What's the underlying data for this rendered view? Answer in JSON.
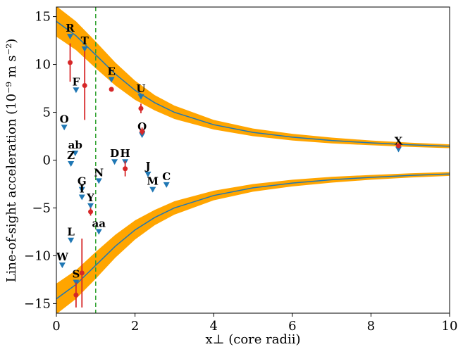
{
  "chart_data": {
    "type": "scatter",
    "x_label": "x⊥ (core radii)",
    "y_label": "Line-of-sight acceleration (10⁻⁹ m s⁻²)",
    "xlim": [
      0,
      10
    ],
    "ylim": [
      -16,
      16
    ],
    "xticks": [
      0,
      2,
      4,
      6,
      8,
      10
    ],
    "yticks": [
      {
        "value": -15,
        "label": "−15"
      },
      {
        "value": -10,
        "label": "−10"
      },
      {
        "value": -5,
        "label": "−5"
      },
      0,
      5,
      10,
      15
    ],
    "model_x": [
      0,
      0.5,
      1,
      1.5,
      2,
      2.5,
      3,
      4,
      5,
      6,
      7,
      8,
      9,
      10
    ],
    "band_color": "#ffa500",
    "bands": [
      {
        "low": [
          12.9,
          11.5,
          9.6,
          7.8,
          6.3,
          5.2,
          4.3,
          3.2,
          2.5,
          2.05,
          1.75,
          1.55,
          1.38,
          1.25
        ],
        "high": [
          16.1,
          14.5,
          12.4,
          10.2,
          8.3,
          6.8,
          5.7,
          4.2,
          3.3,
          2.75,
          2.35,
          2.05,
          1.82,
          1.65
        ]
      },
      {
        "low": [
          -16.1,
          -14.5,
          -12.4,
          -10.2,
          -8.3,
          -6.8,
          -5.7,
          -4.2,
          -3.3,
          -2.75,
          -2.35,
          -2.05,
          -1.82,
          -1.65
        ],
        "high": [
          -12.9,
          -11.5,
          -9.6,
          -7.8,
          -6.3,
          -5.2,
          -4.3,
          -3.2,
          -2.5,
          -2.05,
          -1.75,
          -1.55,
          -1.38,
          -1.25
        ]
      }
    ],
    "curve_color": "#1f77b4",
    "curves": [
      {
        "values": [
          14.5,
          13.0,
          11.0,
          9.0,
          7.3,
          6.0,
          5.0,
          3.7,
          2.9,
          2.4,
          2.05,
          1.8,
          1.6,
          1.45
        ]
      },
      {
        "values": [
          -14.5,
          -13.0,
          -11.0,
          -9.0,
          -7.3,
          -6.0,
          -5.0,
          -3.7,
          -2.9,
          -2.4,
          -2.05,
          -1.8,
          -1.6,
          -1.45
        ]
      }
    ],
    "vline": {
      "x": 1,
      "color": "#2ca02c"
    },
    "triangles": {
      "color": "#1f77b4",
      "labels": [
        "R",
        "T",
        "F",
        "E",
        "U",
        "O",
        "Q",
        "X",
        "ab",
        "Z",
        "D",
        "H",
        "J",
        "C",
        "N",
        "G",
        "M",
        "I",
        "Y",
        "aa",
        "L",
        "W",
        "S"
      ],
      "x": [
        0.35,
        0.72,
        0.5,
        1.4,
        2.15,
        0.2,
        2.18,
        8.7,
        0.48,
        0.37,
        1.48,
        1.75,
        2.33,
        2.8,
        1.08,
        0.65,
        2.45,
        0.65,
        0.87,
        1.08,
        0.37,
        0.15,
        0.5
      ],
      "values": [
        12.9,
        11.6,
        7.3,
        8.4,
        6.6,
        3.4,
        2.6,
        1.1,
        0.7,
        -0.4,
        -0.2,
        -0.2,
        -1.5,
        -2.6,
        -2.2,
        -3.1,
        -3.1,
        -3.9,
        -4.8,
        -7.5,
        -8.4,
        -11.0,
        -12.8
      ]
    },
    "measurements": {
      "color": "#d62728",
      "x": [
        0.35,
        0.72,
        1.4,
        2.15,
        2.18,
        1.75,
        0.87,
        0.65,
        0.5,
        8.7
      ],
      "values": [
        10.2,
        7.8,
        7.4,
        5.4,
        3.0,
        -0.9,
        -5.4,
        -11.8,
        -14.1,
        1.5
      ],
      "errors": [
        2.0,
        3.6,
        0.0,
        0.5,
        0.4,
        0.8,
        0.4,
        3.6,
        1.3,
        0.0
      ]
    }
  }
}
